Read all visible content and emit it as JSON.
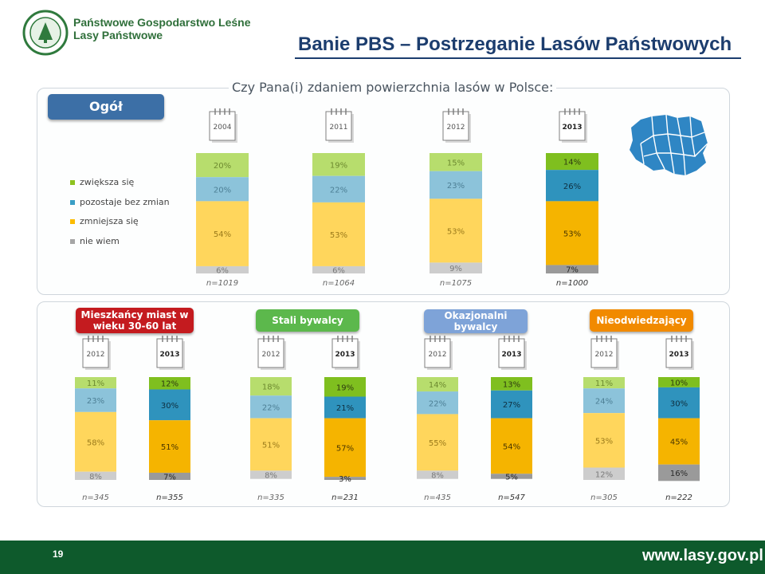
{
  "header": {
    "org_line1": "Państwowe Gospodarstwo Leśne",
    "org_line2": "Lasy Państwowe",
    "logo_text": "LASY PAŃSTWOWE",
    "title": "Banie PBS – Postrzeganie Lasów Państwowych"
  },
  "question": "Czy Pana(i) zdaniem powierzchnia lasów w Polsce:",
  "legend": [
    {
      "label": "zwiększa się",
      "color": "#8dc21f"
    },
    {
      "label": "pozostaje bez zmian",
      "color": "#3a9ec6"
    },
    {
      "label": "zmniejsza się",
      "color": "#fcbc00"
    },
    {
      "label": "nie wiem",
      "color": "#a6a6a6"
    }
  ],
  "groups": {
    "overall": {
      "label": "Ogół",
      "color": "#3c6fa6"
    },
    "g1": {
      "label_line1": "Mieszkańcy miast w",
      "label_line2": "wieku 30-60 lat",
      "color": "#c41b1f"
    },
    "g2": {
      "label": "Stali bywalcy",
      "color": "#5cb84c"
    },
    "g3": {
      "label_line1": "Okazjonalni",
      "label_line2": "bywalcy",
      "color": "#7ea3d8"
    },
    "g4": {
      "label": "Nieodwiedzający",
      "color": "#f18a00"
    }
  },
  "footer": {
    "page": "19",
    "url": "www.lasy.gov.pl"
  },
  "chart_data": [
    {
      "type": "bar",
      "stacked": true,
      "group": "Ogół",
      "categories": [
        "2004",
        "2011",
        "2012",
        "2013"
      ],
      "sample_sizes": [
        "n=1019",
        "n=1064",
        "n=1075",
        "n=1000"
      ],
      "series": [
        {
          "name": "zwiększa się",
          "values": [
            20,
            19,
            15,
            14
          ]
        },
        {
          "name": "pozostaje bez zmian",
          "values": [
            20,
            22,
            23,
            26
          ]
        },
        {
          "name": "zmniejsza się",
          "values": [
            54,
            53,
            53,
            53
          ]
        },
        {
          "name": "nie wiem",
          "values": [
            6,
            6,
            9,
            7
          ]
        }
      ]
    },
    {
      "type": "bar",
      "stacked": true,
      "group": "Mieszkańcy miast w wieku 30-60 lat",
      "categories": [
        "2012",
        "2013"
      ],
      "sample_sizes": [
        "n=345",
        "n=355"
      ],
      "series": [
        {
          "name": "zwiększa się",
          "values": [
            11,
            12
          ]
        },
        {
          "name": "pozostaje bez zmian",
          "values": [
            23,
            30
          ]
        },
        {
          "name": "zmniejsza się",
          "values": [
            58,
            51
          ]
        },
        {
          "name": "nie wiem",
          "values": [
            8,
            7
          ]
        }
      ]
    },
    {
      "type": "bar",
      "stacked": true,
      "group": "Stali bywalcy",
      "categories": [
        "2012",
        "2013"
      ],
      "sample_sizes": [
        "n=335",
        "n=231"
      ],
      "series": [
        {
          "name": "zwiększa się",
          "values": [
            18,
            19
          ]
        },
        {
          "name": "pozostaje bez zmian",
          "values": [
            22,
            21
          ]
        },
        {
          "name": "zmniejsza się",
          "values": [
            51,
            57
          ]
        },
        {
          "name": "nie wiem",
          "values": [
            8,
            3
          ]
        }
      ]
    },
    {
      "type": "bar",
      "stacked": true,
      "group": "Okazjonalni bywalcy",
      "categories": [
        "2012",
        "2013"
      ],
      "sample_sizes": [
        "n=435",
        "n=547"
      ],
      "series": [
        {
          "name": "zwiększa się",
          "values": [
            14,
            13
          ]
        },
        {
          "name": "pozostaje bez zmian",
          "values": [
            22,
            27
          ]
        },
        {
          "name": "zmniejsza się",
          "values": [
            55,
            54
          ]
        },
        {
          "name": "nie wiem",
          "values": [
            8,
            5
          ]
        }
      ]
    },
    {
      "type": "bar",
      "stacked": true,
      "group": "Nieodwiedzający",
      "categories": [
        "2012",
        "2013"
      ],
      "sample_sizes": [
        "n=305",
        "n=222"
      ],
      "series": [
        {
          "name": "zwiększa się",
          "values": [
            11,
            10
          ]
        },
        {
          "name": "pozostaje bez zmian",
          "values": [
            24,
            30
          ]
        },
        {
          "name": "zmniejsza się",
          "values": [
            53,
            45
          ]
        },
        {
          "name": "nie wiem",
          "values": [
            12,
            16
          ]
        }
      ]
    }
  ],
  "colors": {
    "dark": [
      "#7fbf1f",
      "#2f93bd",
      "#f5b400",
      "#9a9a9a"
    ],
    "light": [
      "#b7dd6d",
      "#8cc3da",
      "#ffd65c",
      "#cdcdcd"
    ],
    "dark_text": [
      "#2e3b10",
      "#0f2f3f",
      "#4a3600",
      "#2a2a2a"
    ],
    "light_text": [
      "#6d8a30",
      "#4d7f95",
      "#9a7a1a",
      "#7a7a7a"
    ],
    "map": "#2f86c4"
  }
}
